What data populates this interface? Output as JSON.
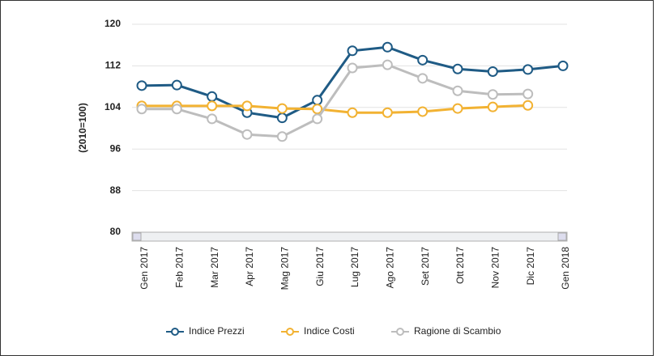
{
  "chart_data": {
    "type": "line",
    "y_label": "(2010=100)",
    "categories": [
      "Gen 2017",
      "Feb 2017",
      "Mar 2017",
      "Apr 2017",
      "Mag 2017",
      "Giu 2017",
      "Lug 2017",
      "Ago 2017",
      "Set 2017",
      "Ott 2017",
      "Nov 2017",
      "Dic 2017",
      "Gen 2018"
    ],
    "series": [
      {
        "name": "Indice Prezzi",
        "color": "#1f5b85",
        "values": [
          108.2,
          108.3,
          106.1,
          103,
          102,
          105.4,
          114.9,
          115.6,
          113.1,
          111.4,
          110.9,
          111.3,
          112
        ]
      },
      {
        "name": "Indice Costi",
        "color": "#f2b232",
        "values": [
          104.3,
          104.3,
          104.3,
          104.3,
          103.8,
          103.7,
          103,
          103,
          103.2,
          103.8,
          104.1,
          104.4,
          null
        ]
      },
      {
        "name": "Ragione di Scambio",
        "color": "#bdbdbd",
        "values": [
          103.7,
          103.7,
          101.8,
          98.8,
          98.4,
          101.8,
          111.6,
          112.2,
          109.6,
          107.2,
          106.5,
          106.6,
          null
        ]
      }
    ],
    "ylim": [
      80,
      120
    ],
    "yticks": [
      80,
      88,
      96,
      104,
      112,
      120
    ],
    "grid": true
  }
}
